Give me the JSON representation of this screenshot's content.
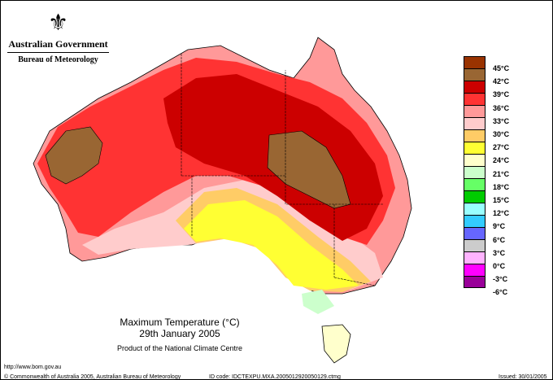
{
  "logo": {
    "government": "Australian Government",
    "bureau": "Bureau of Meteorology"
  },
  "title": {
    "line1": "Maximum Temperature (°C)",
    "line2": "29th January 2005",
    "product": "Product of the National Climate Centre"
  },
  "legend": {
    "colors": [
      "#993300",
      "#996633",
      "#cc0000",
      "#ff3333",
      "#ff9999",
      "#ffcccc",
      "#ffcc66",
      "#ffff33",
      "#ffffcc",
      "#ccffcc",
      "#66ff66",
      "#00cc00",
      "#99ffff",
      "#33ccff",
      "#6666ff",
      "#cccccc",
      "#ffb3ff",
      "#ff00ff",
      "#990099"
    ],
    "labels": [
      "45°C",
      "42°C",
      "39°C",
      "36°C",
      "33°C",
      "30°C",
      "27°C",
      "24°C",
      "21°C",
      "18°C",
      "15°C",
      "12°C",
      "9°C",
      "6°C",
      "3°C",
      "0°C",
      "-3°C",
      "-6°C"
    ]
  },
  "footer": {
    "url": "http://www.bom.gov.au",
    "copyright": "© Commonwealth of Australia 2005, Australian Bureau of Meteorology",
    "id_code": "ID code: IDCTEXPU.MXA.2005012920050129.ctmg",
    "issued": "Issued: 30/01/2005"
  }
}
